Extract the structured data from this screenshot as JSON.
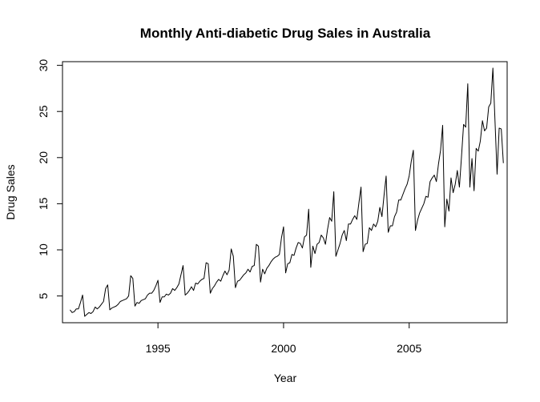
{
  "chart_data": {
    "type": "line",
    "title": "Monthly Anti-diabetic Drug Sales in Australia",
    "xlabel": "Year",
    "ylabel": "Drug Sales",
    "xlim": [
      1991.2,
      2008.9
    ],
    "ylim": [
      2.1,
      30.4
    ],
    "x_ticks": [
      1995,
      2000,
      2005
    ],
    "y_ticks": [
      5,
      10,
      15,
      20,
      25,
      30
    ],
    "grid": false,
    "legend": "none",
    "line_color": "#000000",
    "series": [
      {
        "x_start": 1991.5,
        "x_step": 0.08333,
        "values": [
          3.5,
          3.2,
          3.3,
          3.6,
          3.6,
          4.3,
          5.1,
          2.8,
          3.0,
          3.2,
          3.1,
          3.3,
          3.8,
          3.6,
          3.8,
          4.1,
          4.4,
          5.8,
          6.2,
          3.5,
          3.7,
          3.8,
          3.9,
          4.1,
          4.4,
          4.5,
          4.6,
          4.7,
          5.0,
          7.2,
          6.9,
          3.9,
          4.3,
          4.2,
          4.5,
          4.6,
          4.7,
          5.1,
          5.3,
          5.3,
          5.6,
          6.1,
          6.7,
          4.3,
          4.9,
          4.9,
          5.2,
          5.1,
          5.3,
          5.8,
          5.6,
          5.9,
          6.3,
          7.3,
          8.3,
          5.1,
          5.3,
          5.6,
          6.0,
          5.6,
          6.4,
          6.3,
          6.6,
          6.8,
          6.9,
          8.6,
          8.5,
          5.3,
          5.8,
          6.1,
          6.5,
          6.8,
          6.6,
          7.2,
          7.7,
          7.3,
          7.8,
          10.1,
          9.3,
          5.9,
          6.6,
          6.7,
          7.0,
          7.3,
          7.5,
          7.9,
          7.6,
          8.2,
          8.3,
          10.6,
          10.4,
          6.5,
          7.9,
          7.4,
          8.0,
          8.3,
          8.7,
          9.0,
          9.2,
          9.3,
          9.5,
          11.3,
          12.5,
          7.5,
          8.5,
          8.6,
          9.5,
          9.4,
          10.2,
          10.8,
          10.7,
          10.2,
          11.4,
          11.6,
          14.4,
          8.1,
          10.4,
          9.6,
          10.6,
          10.8,
          11.6,
          11.3,
          10.6,
          12.2,
          13.5,
          13.1,
          16.3,
          9.3,
          10.0,
          10.7,
          11.6,
          12.1,
          11.0,
          12.8,
          12.8,
          13.3,
          13.7,
          13.3,
          15.1,
          16.8,
          9.8,
          10.6,
          10.7,
          12.4,
          12.1,
          12.8,
          12.5,
          13.1,
          14.6,
          13.6,
          15.9,
          18.0,
          11.9,
          12.6,
          12.6,
          13.6,
          14.1,
          15.4,
          15.4,
          16.0,
          16.6,
          17.1,
          18.0,
          19.6,
          20.8,
          12.1,
          13.2,
          14.0,
          14.5,
          15.0,
          15.8,
          15.7,
          17.4,
          17.8,
          18.1,
          17.4,
          19.3,
          20.8,
          23.5,
          12.5,
          15.5,
          14.2,
          17.8,
          16.2,
          17.1,
          18.6,
          16.8,
          20.1,
          23.6,
          23.3,
          28.0,
          16.8,
          19.9,
          16.4,
          21.0,
          20.7,
          21.8,
          24.0,
          22.9,
          23.2,
          25.5,
          25.9,
          29.7,
          24.0,
          18.2,
          23.2,
          23.1,
          19.4
        ]
      }
    ]
  }
}
